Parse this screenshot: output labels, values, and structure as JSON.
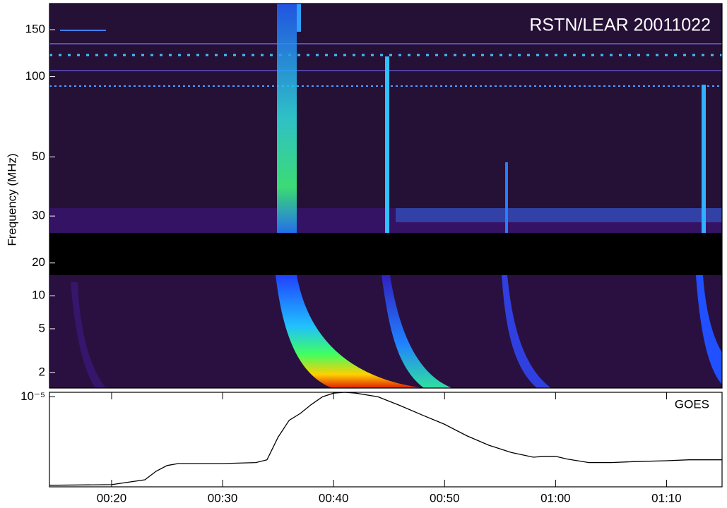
{
  "chart_data": [
    {
      "type": "spectrogram",
      "title": "RSTN/LEAR 20011022",
      "ylabel": "Frequency (MHz)",
      "yscale": "log",
      "ylim": [
        18,
        188
      ],
      "yticks": [
        20,
        30,
        50,
        100,
        150
      ]
    },
    {
      "type": "spectrogram",
      "yscale": "log",
      "ylim": [
        1.44,
        15.4
      ],
      "yticks": [
        2,
        5,
        10
      ]
    },
    {
      "type": "line",
      "yscale": "log",
      "legend": "upper right",
      "x": [
        14.4,
        20,
        23,
        24,
        25,
        26,
        30,
        33,
        34,
        35,
        36,
        37,
        38,
        39,
        40,
        41,
        42,
        44,
        46,
        48,
        50,
        52,
        54,
        56,
        58,
        59,
        60,
        61,
        63,
        65,
        67,
        70,
        72,
        75
      ],
      "series": [
        {
          "name": "GOES",
          "color": "#000000",
          "values": [
            1.55e-06,
            1.57e-06,
            1.74e-06,
            2.08e-06,
            2.35e-06,
            2.45e-06,
            2.45e-06,
            2.5e-06,
            2.65e-06,
            4.27e-06,
            6.1e-06,
            7.04e-06,
            8.5e-06,
            1e-05,
            1.08e-05,
            1.1e-05,
            1.08e-05,
            1e-05,
            8.3e-06,
            6.8e-06,
            5.6e-06,
            4.4e-06,
            3.6e-06,
            3.1e-06,
            2.8e-06,
            2.85e-06,
            2.85e-06,
            2.7e-06,
            2.5e-06,
            2.5e-06,
            2.55e-06,
            2.6e-06,
            2.65e-06,
            2.65e-06
          ]
        }
      ],
      "xlim": [
        14.4,
        75
      ],
      "xticks": [
        {
          "value": 20,
          "label": "00:20"
        },
        {
          "value": 30,
          "label": "00:30"
        },
        {
          "value": 40,
          "label": "00:40"
        },
        {
          "value": 50,
          "label": "00:50"
        },
        {
          "value": 60,
          "label": "01:00"
        },
        {
          "value": 70,
          "label": "01:10"
        }
      ],
      "ylim": [
        1.5e-06,
        1.1e-05
      ],
      "yticks": [
        {
          "value": 1e-05,
          "label": "10⁻⁵"
        }
      ]
    }
  ]
}
